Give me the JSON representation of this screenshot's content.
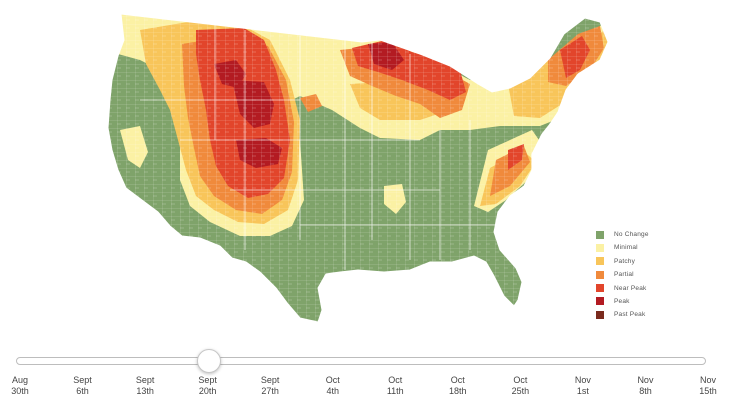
{
  "colors": {
    "no_change": "#7fa36a",
    "minimal": "#fbf1a4",
    "patchy": "#f8c55a",
    "partial": "#f08a3c",
    "near_peak": "#e2452b",
    "peak": "#b31b22",
    "past_peak": "#7a2a1d",
    "county_lines": "#ffffff",
    "slider_border": "#bdbdbd"
  },
  "legend": [
    {
      "label": "No Change",
      "color": "#7fa36a"
    },
    {
      "label": "Minimal",
      "color": "#fbf1a4"
    },
    {
      "label": "Patchy",
      "color": "#f8c55a"
    },
    {
      "label": "Partial",
      "color": "#f08a3c"
    },
    {
      "label": "Near Peak",
      "color": "#e2452b"
    },
    {
      "label": "Peak",
      "color": "#b31b22"
    },
    {
      "label": "Past Peak",
      "color": "#7a2a1d"
    }
  ],
  "timeline": {
    "ticks": [
      {
        "month": "Aug",
        "day": "30th"
      },
      {
        "month": "Sept",
        "day": "6th"
      },
      {
        "month": "Sept",
        "day": "13th"
      },
      {
        "month": "Sept",
        "day": "20th"
      },
      {
        "month": "Sept",
        "day": "27th"
      },
      {
        "month": "Oct",
        "day": "4th"
      },
      {
        "month": "Oct",
        "day": "11th"
      },
      {
        "month": "Oct",
        "day": "18th"
      },
      {
        "month": "Oct",
        "day": "25th"
      },
      {
        "month": "Nov",
        "day": "1st"
      },
      {
        "month": "Nov",
        "day": "8th"
      },
      {
        "month": "Nov",
        "day": "15th"
      }
    ],
    "selected_index": 3
  }
}
